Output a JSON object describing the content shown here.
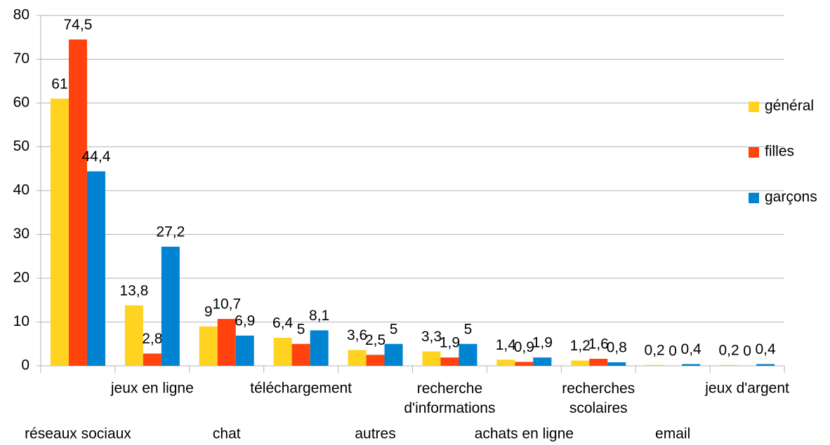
{
  "chart_data": {
    "type": "bar",
    "categories": [
      "réseaux sociaux",
      "jeux en ligne",
      "chat",
      "téléchargement",
      "autres",
      "recherche\nd'informations",
      "achats en ligne",
      "recherches\nscolaires",
      "email",
      "jeux d'argent"
    ],
    "series": [
      {
        "name": "général",
        "color": "#ffd320",
        "values": [
          61,
          13.8,
          9,
          6.4,
          3.6,
          3.3,
          1.4,
          1.2,
          0.2,
          0.2
        ],
        "value_labels": [
          "61",
          "13,8",
          "9",
          "6,4",
          "3,6",
          "3,3",
          "1,4",
          "1,2",
          "0,2",
          "0,2"
        ]
      },
      {
        "name": "filles",
        "color": "#ff420e",
        "values": [
          74.5,
          2.8,
          10.7,
          5,
          2.5,
          1.9,
          0.9,
          1.6,
          0,
          0
        ],
        "value_labels": [
          "74,5",
          "2,8",
          "10,7",
          "5",
          "2,5",
          "1,9",
          "0,9",
          "1,6",
          "0",
          "0"
        ]
      },
      {
        "name": "garçons",
        "color": "#0084d1",
        "values": [
          44.4,
          27.2,
          6.9,
          8.1,
          5,
          5,
          1.9,
          0.8,
          0.4,
          0.4
        ],
        "value_labels": [
          "44,4",
          "27,2",
          "6,9",
          "8,1",
          "5",
          "5",
          "1,9",
          "0,8",
          "0,4",
          "0,4"
        ]
      }
    ],
    "ylim": [
      0,
      80
    ],
    "yticks": [
      0,
      10,
      20,
      30,
      40,
      50,
      60,
      70,
      80
    ],
    "grid": true,
    "legend": "right"
  }
}
